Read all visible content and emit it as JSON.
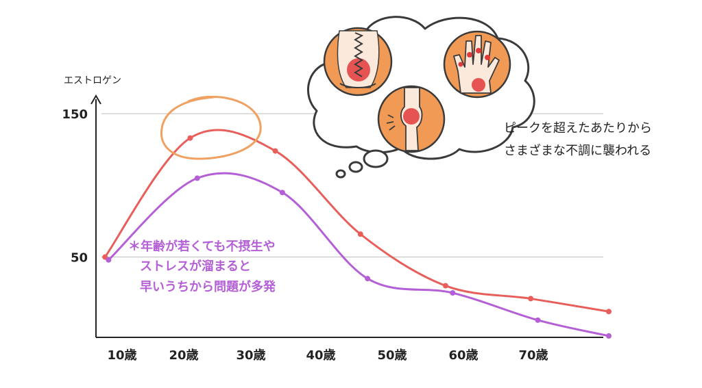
{
  "chart_data": {
    "type": "line",
    "ylabel": "エストロゲン",
    "yticks": [
      {
        "value": 150,
        "label": "150"
      },
      {
        "value": 50,
        "label": "50"
      }
    ],
    "ylim": [
      -6,
      172
    ],
    "xlim": [
      9.5,
      81
    ],
    "x_ticks": [
      {
        "value": 10,
        "label": "10歳"
      },
      {
        "value": 20,
        "label": "20歳"
      },
      {
        "value": 30,
        "label": "30歳"
      },
      {
        "value": 40,
        "label": "40歳"
      },
      {
        "value": 50,
        "label": "50歳"
      },
      {
        "value": 60,
        "label": "60歳"
      },
      {
        "value": 70,
        "label": "70歳"
      }
    ],
    "grid": "horizontal at 150 and 50",
    "series": [
      {
        "color": "#e85e5a",
        "x": [
          10,
          22,
          34,
          46,
          58,
          70,
          81
        ],
        "values": [
          50,
          133,
          124,
          66,
          30,
          21,
          12
        ]
      },
      {
        "color": "#b45fd6",
        "x": [
          10.5,
          23,
          35,
          47,
          59,
          71,
          81
        ],
        "values": [
          48,
          105,
          95,
          35,
          25,
          6,
          -5
        ]
      }
    ],
    "annotations": {
      "purple_note": [
        "＊年齢が若くても不摂生や",
        "ストレスが溜まると",
        "早いうちから問題が多発"
      ],
      "bubble_text": [
        "ピークを超えたあたりから",
        "さまざまな不調に襲われる"
      ]
    },
    "highlight_color": "#f0a060"
  }
}
